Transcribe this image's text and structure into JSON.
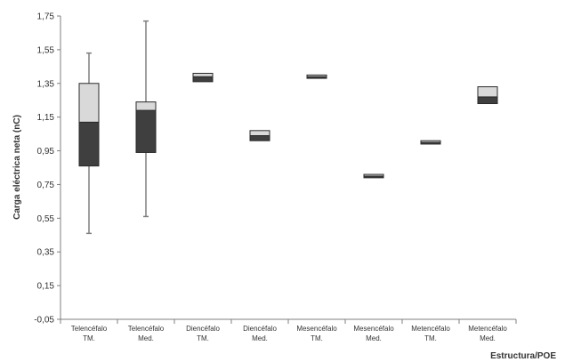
{
  "chart_data": {
    "type": "boxplot",
    "title": "",
    "xlabel": "Estructura/POE",
    "ylabel": "Carga eléctrica neta (nC)",
    "ylim": [
      -0.05,
      1.75
    ],
    "yticks": [
      "-0,05",
      "0,15",
      "0,35",
      "0,55",
      "0,75",
      "0,95",
      "1,15",
      "1,35",
      "1,55",
      "1,75"
    ],
    "grid": false,
    "categories": [
      [
        "Telencéfalo",
        "TM."
      ],
      [
        "Telencéfalo",
        "Med."
      ],
      [
        "Diencéfalo",
        "TM."
      ],
      [
        "Diencéfalo",
        "Med."
      ],
      [
        "Mesencéfalo",
        "TM."
      ],
      [
        "Mesencéfalo",
        "Med."
      ],
      [
        "Metencéfalo",
        "TM."
      ],
      [
        "Metencéfalo",
        "Med."
      ]
    ],
    "boxes": [
      {
        "min": 0.46,
        "q1": 0.86,
        "median": 1.12,
        "q3": 1.35,
        "max": 1.53
      },
      {
        "min": 0.56,
        "q1": 0.94,
        "median": 1.19,
        "q3": 1.24,
        "max": 1.72
      },
      {
        "min": 1.36,
        "q1": 1.36,
        "median": 1.39,
        "q3": 1.41,
        "max": 1.41
      },
      {
        "min": 1.01,
        "q1": 1.01,
        "median": 1.04,
        "q3": 1.07,
        "max": 1.07
      },
      {
        "min": 1.38,
        "q1": 1.38,
        "median": 1.39,
        "q3": 1.4,
        "max": 1.4
      },
      {
        "min": 0.79,
        "q1": 0.79,
        "median": 0.8,
        "q3": 0.81,
        "max": 0.81
      },
      {
        "min": 0.99,
        "q1": 0.99,
        "median": 1.0,
        "q3": 1.01,
        "max": 1.01
      },
      {
        "min": 1.23,
        "q1": 1.23,
        "median": 1.27,
        "q3": 1.33,
        "max": 1.33
      }
    ],
    "colors": {
      "lower_box": "#3f3f3f",
      "upper_box": "#d9d9d9",
      "axis": "#7f7f7f",
      "whisker": "#7f7f7f"
    }
  }
}
